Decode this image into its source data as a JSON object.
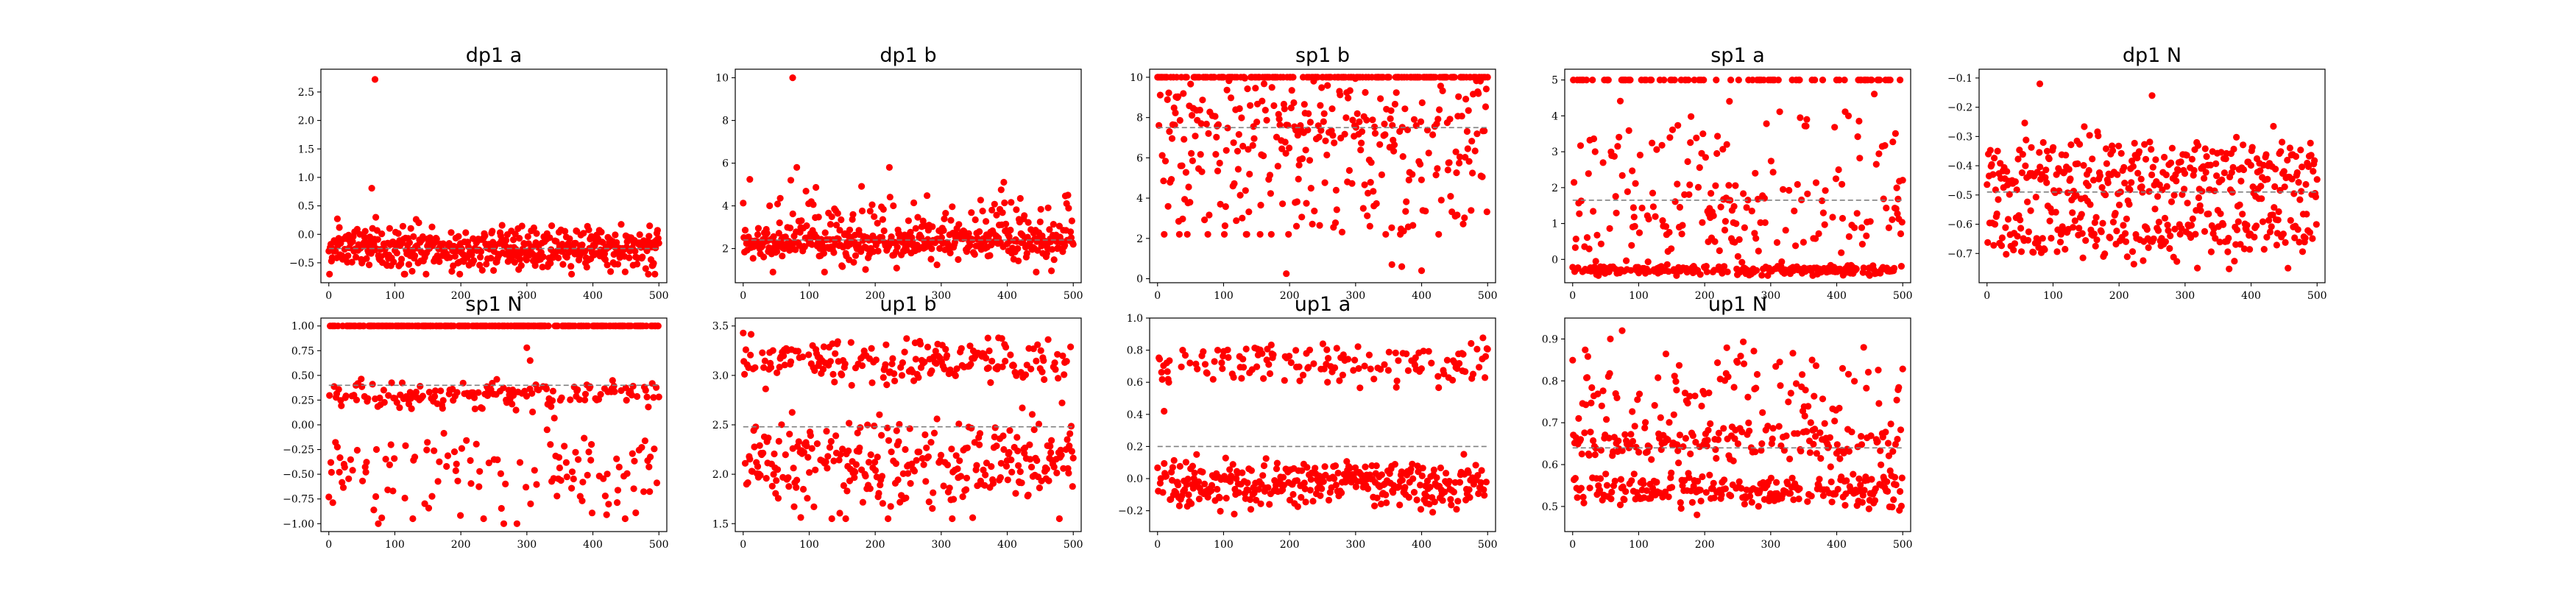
{
  "figure": {
    "marker_color": "#ff0000",
    "mean_line_color": "#808080",
    "axes_color": "#000000",
    "background": "#ffffff"
  },
  "chart_data": [
    {
      "type": "scatter",
      "title": "dp1 a",
      "n_points": 500,
      "x_range": [
        0,
        500
      ],
      "xlim": [
        -12,
        512
      ],
      "xticks": [
        0,
        100,
        200,
        300,
        400,
        500
      ],
      "ylim": [
        -0.85,
        2.9
      ],
      "yticks": [
        -0.5,
        0.0,
        0.5,
        1.0,
        1.5,
        2.0,
        2.5
      ],
      "ytick_labels": [
        "−0.5",
        "0.0",
        "0.5",
        "1.0",
        "1.5",
        "2.0",
        "2.5"
      ],
      "mean_line": -0.25,
      "clusters": [
        {
          "center": -0.25,
          "spread": 0.2,
          "weight": 1.0
        }
      ],
      "outliers": [
        {
          "x": 70,
          "y": 2.72
        },
        {
          "x": 65,
          "y": 0.81
        }
      ],
      "clip": [
        -0.7,
        0.3
      ]
    },
    {
      "type": "scatter",
      "title": "dp1 b",
      "n_points": 500,
      "x_range": [
        0,
        500
      ],
      "xlim": [
        -12,
        512
      ],
      "xticks": [
        0,
        100,
        200,
        300,
        400,
        500
      ],
      "ylim": [
        0.4,
        10.4
      ],
      "yticks": [
        2,
        4,
        6,
        8,
        10
      ],
      "ytick_labels": [
        "2",
        "4",
        "6",
        "8",
        "10"
      ],
      "mean_line": 2.4,
      "clusters": [
        {
          "center": 2.3,
          "spread": 0.35,
          "weight": 0.7
        },
        {
          "center": 3.0,
          "spread": 1.1,
          "weight": 0.3
        }
      ],
      "outliers": [
        {
          "x": 75,
          "y": 10.0
        }
      ],
      "clip": [
        0.9,
        5.8
      ]
    },
    {
      "type": "scatter",
      "title": "sp1 b",
      "n_points": 500,
      "x_range": [
        0,
        500
      ],
      "xlim": [
        -12,
        512
      ],
      "xticks": [
        0,
        100,
        200,
        300,
        400,
        500
      ],
      "ylim": [
        -0.2,
        10.4
      ],
      "yticks": [
        0,
        2,
        4,
        6,
        8,
        10
      ],
      "ytick_labels": [
        "0",
        "2",
        "4",
        "6",
        "8",
        "10"
      ],
      "mean_line": 7.5,
      "clusters": [
        {
          "center": 10.0,
          "spread": 0.0,
          "weight": 0.33
        },
        {
          "center": 8.0,
          "spread": 1.2,
          "weight": 0.4
        },
        {
          "center": 4.5,
          "spread": 1.8,
          "weight": 0.27
        }
      ],
      "outliers": [
        {
          "x": 195,
          "y": 0.25
        },
        {
          "x": 355,
          "y": 0.7
        },
        {
          "x": 400,
          "y": 0.4
        },
        {
          "x": 370,
          "y": 0.6
        }
      ],
      "clip": [
        2.2,
        10.0
      ]
    },
    {
      "type": "scatter",
      "title": "sp1 a",
      "n_points": 500,
      "x_range": [
        0,
        500
      ],
      "xlim": [
        -12,
        512
      ],
      "xticks": [
        0,
        100,
        200,
        300,
        400,
        500
      ],
      "ylim": [
        -0.65,
        5.3
      ],
      "yticks": [
        0,
        1,
        2,
        3,
        4,
        5
      ],
      "ytick_labels": [
        "0",
        "1",
        "2",
        "3",
        "4",
        "5"
      ],
      "mean_line": 1.65,
      "clusters": [
        {
          "center": -0.3,
          "spread": 0.07,
          "weight": 0.45
        },
        {
          "center": 5.0,
          "spread": 0.0,
          "weight": 0.13
        },
        {
          "center": 1.0,
          "spread": 0.6,
          "weight": 0.22
        },
        {
          "center": 3.0,
          "spread": 0.9,
          "weight": 0.2
        }
      ],
      "outliers": [],
      "clip": [
        -0.45,
        5.0
      ]
    },
    {
      "type": "scatter",
      "title": "dp1 N",
      "n_points": 500,
      "x_range": [
        0,
        500
      ],
      "xlim": [
        -12,
        512
      ],
      "xticks": [
        0,
        100,
        200,
        300,
        400,
        500
      ],
      "ylim": [
        -0.8,
        -0.07
      ],
      "yticks": [
        -0.7,
        -0.6,
        -0.5,
        -0.4,
        -0.3,
        -0.2,
        -0.1
      ],
      "ytick_labels": [
        "−0.7",
        "−0.6",
        "−0.5",
        "−0.4",
        "−0.3",
        "−0.2",
        "−0.1"
      ],
      "mean_line": -0.49,
      "clusters": [
        {
          "center": -0.42,
          "spread": 0.06,
          "weight": 0.6
        },
        {
          "center": -0.63,
          "spread": 0.05,
          "weight": 0.4
        }
      ],
      "outliers": [
        {
          "x": 80,
          "y": -0.12
        },
        {
          "x": 250,
          "y": -0.16
        }
      ],
      "clip": [
        -0.77,
        -0.21
      ]
    },
    {
      "type": "scatter",
      "title": "sp1 N",
      "n_points": 500,
      "x_range": [
        0,
        500
      ],
      "xlim": [
        -12,
        512
      ],
      "xticks": [
        0,
        100,
        200,
        300,
        400,
        500
      ],
      "ylim": [
        -1.08,
        1.08
      ],
      "yticks": [
        -1.0,
        -0.75,
        -0.5,
        -0.25,
        0.0,
        0.25,
        0.5,
        0.75,
        1.0
      ],
      "ytick_labels": [
        "−1.00",
        "−0.75",
        "−0.50",
        "−0.25",
        "0.00",
        "0.25",
        "0.50",
        "0.75",
        "1.00"
      ],
      "mean_line": 0.4,
      "clusters": [
        {
          "center": 1.0,
          "spread": 0.0,
          "weight": 0.45
        },
        {
          "center": 0.3,
          "spread": 0.07,
          "weight": 0.33
        },
        {
          "center": -0.5,
          "spread": 0.25,
          "weight": 0.22
        }
      ],
      "outliers": [
        {
          "x": 75,
          "y": -1.0
        },
        {
          "x": 265,
          "y": -1.0
        },
        {
          "x": 285,
          "y": -1.0
        },
        {
          "x": 300,
          "y": 0.78
        },
        {
          "x": 305,
          "y": 0.65
        }
      ],
      "clip": [
        -0.95,
        1.0
      ]
    },
    {
      "type": "scatter",
      "title": "up1 b",
      "n_points": 500,
      "x_range": [
        0,
        500
      ],
      "xlim": [
        -12,
        512
      ],
      "xticks": [
        0,
        100,
        200,
        300,
        400,
        500
      ],
      "ylim": [
        1.42,
        3.58
      ],
      "yticks": [
        1.5,
        2.0,
        2.5,
        3.0,
        3.5
      ],
      "ytick_labels": [
        "1.5",
        "2.0",
        "2.5",
        "3.0",
        "3.5"
      ],
      "mean_line": 2.48,
      "clusters": [
        {
          "center": 2.1,
          "spread": 0.22,
          "weight": 0.6
        },
        {
          "center": 3.15,
          "spread": 0.12,
          "weight": 0.4
        }
      ],
      "outliers": [],
      "clip": [
        1.55,
        3.5
      ]
    },
    {
      "type": "scatter",
      "title": "up1 a",
      "n_points": 500,
      "x_range": [
        0,
        500
      ],
      "xlim": [
        -12,
        512
      ],
      "xticks": [
        0,
        100,
        200,
        300,
        400,
        500
      ],
      "ylim": [
        -0.33,
        1.0
      ],
      "yticks": [
        -0.2,
        0.0,
        0.2,
        0.4,
        0.6,
        0.8,
        1.0
      ],
      "ytick_labels": [
        "−0.2",
        "0.0",
        "0.2",
        "0.4",
        "0.6",
        "0.8",
        "1.0"
      ],
      "mean_line": 0.2,
      "clusters": [
        {
          "center": -0.03,
          "spread": 0.07,
          "weight": 0.7
        },
        {
          "center": 0.72,
          "spread": 0.07,
          "weight": 0.3
        }
      ],
      "outliers": [
        {
          "x": 10,
          "y": 0.42
        }
      ],
      "clip": [
        -0.27,
        0.95
      ]
    },
    {
      "type": "scatter",
      "title": "up1 N",
      "n_points": 500,
      "x_range": [
        0,
        500
      ],
      "xlim": [
        -12,
        512
      ],
      "xticks": [
        0,
        100,
        200,
        300,
        400,
        500
      ],
      "ylim": [
        0.44,
        0.95
      ],
      "yticks": [
        0.5,
        0.6,
        0.7,
        0.8,
        0.9
      ],
      "ytick_labels": [
        "0.5",
        "0.6",
        "0.7",
        "0.8",
        "0.9"
      ],
      "mean_line": 0.64,
      "clusters": [
        {
          "center": 0.54,
          "spread": 0.02,
          "weight": 0.45
        },
        {
          "center": 0.65,
          "spread": 0.02,
          "weight": 0.35
        },
        {
          "center": 0.78,
          "spread": 0.06,
          "weight": 0.2
        }
      ],
      "outliers": [
        {
          "x": 75,
          "y": 0.92
        }
      ],
      "clip": [
        0.48,
        0.9
      ]
    }
  ]
}
